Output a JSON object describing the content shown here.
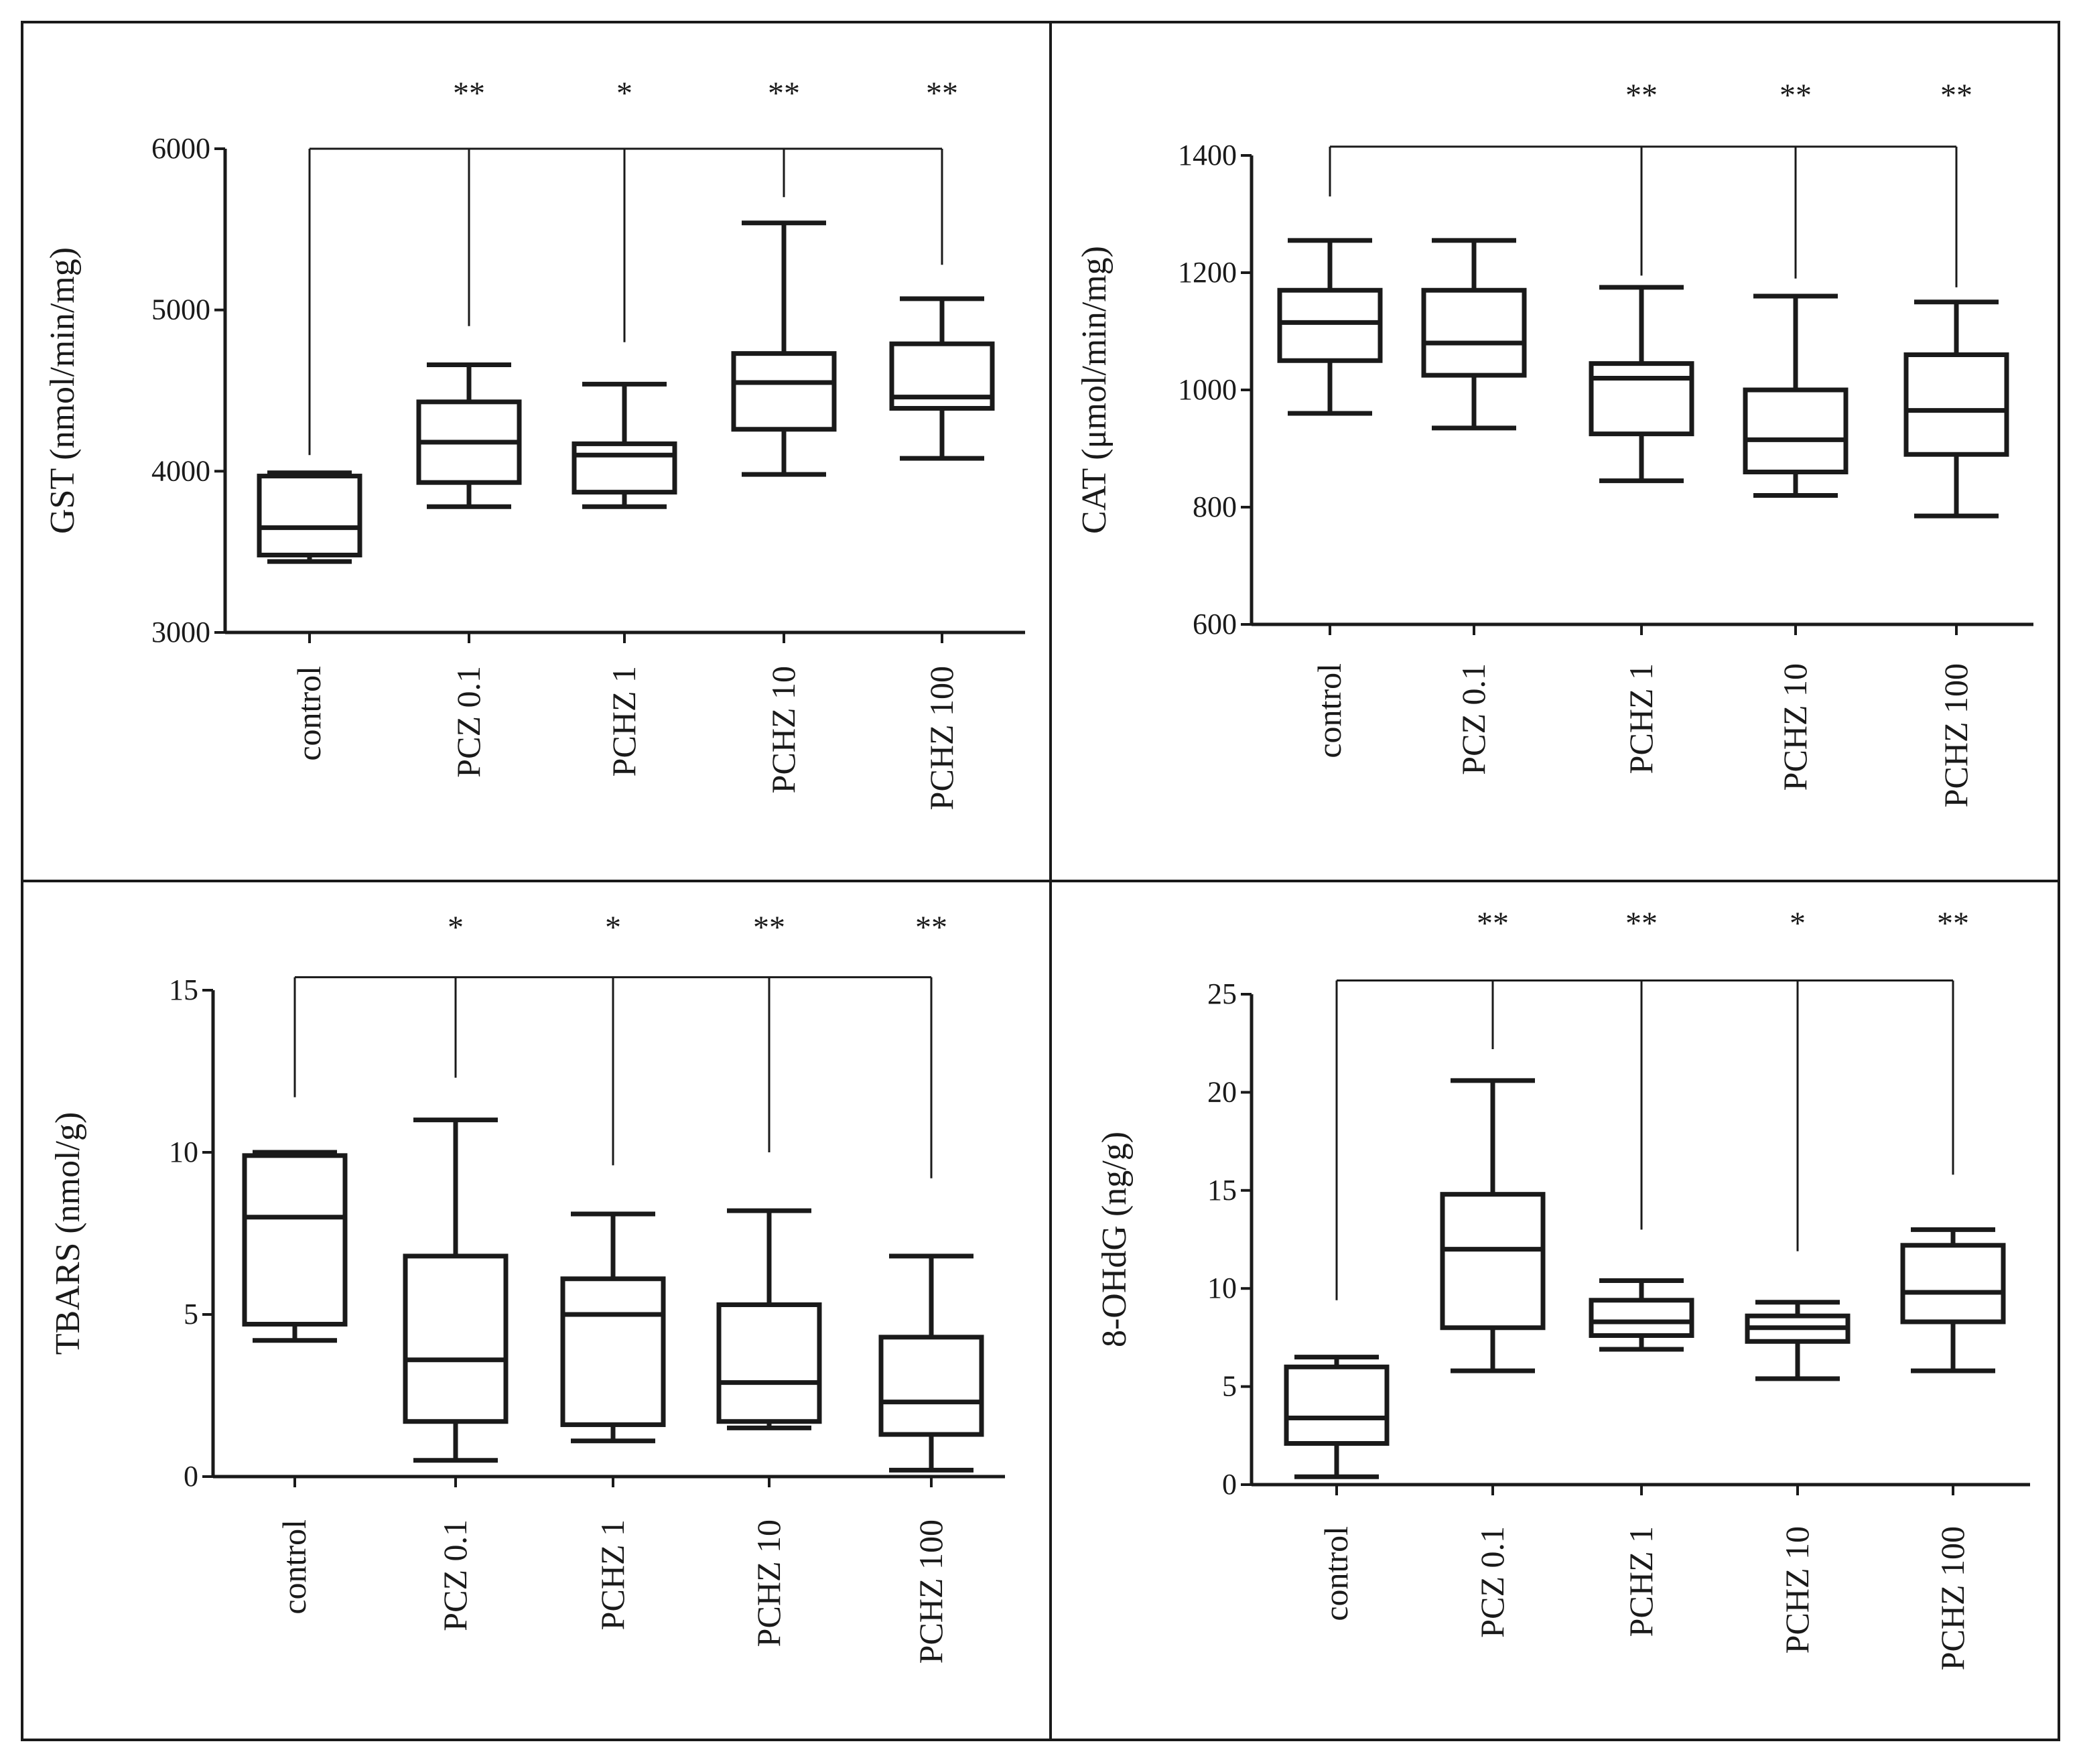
{
  "chart_data": [
    {
      "type": "boxplot",
      "ylabel": "GST (nmol/min/mg)",
      "ylim": [
        3000,
        6000
      ],
      "yticks": [
        3000,
        4000,
        5000,
        6000
      ],
      "categories": [
        "control",
        "PCZ 0.1",
        "PCHZ 1",
        "PCHZ 10",
        "PCHZ 100"
      ],
      "boxes": [
        {
          "min": 3440,
          "q1": 3480,
          "median": 3650,
          "q3": 3970,
          "max": 3990
        },
        {
          "min": 3780,
          "q1": 3930,
          "median": 4180,
          "q3": 4430,
          "max": 4660
        },
        {
          "min": 3780,
          "q1": 3870,
          "median": 4100,
          "q3": 4170,
          "max": 4540
        },
        {
          "min": 3980,
          "q1": 4260,
          "median": 4550,
          "q3": 4730,
          "max": 5540
        },
        {
          "min": 4080,
          "q1": 4390,
          "median": 4460,
          "q3": 4790,
          "max": 5070
        }
      ],
      "significance": {
        "reference": "control",
        "bracket_y": 6000,
        "marks": [
          "",
          "**",
          "*",
          "**",
          "**"
        ],
        "drop_to": [
          4100,
          4900,
          4800,
          5700,
          5280
        ]
      }
    },
    {
      "type": "boxplot",
      "ylabel": "CAT (μmol/min/mg)",
      "ylim": [
        600,
        1400
      ],
      "yticks": [
        600,
        800,
        1000,
        1200,
        1400
      ],
      "categories": [
        "control",
        "PCZ 0.1",
        "PCHZ 1",
        "PCHZ 10",
        "PCHZ 100"
      ],
      "boxes": [
        {
          "min": 960,
          "q1": 1050,
          "median": 1115,
          "q3": 1170,
          "max": 1255
        },
        {
          "min": 935,
          "q1": 1025,
          "median": 1080,
          "q3": 1170,
          "max": 1255
        },
        {
          "min": 845,
          "q1": 925,
          "median": 1020,
          "q3": 1045,
          "max": 1175
        },
        {
          "min": 820,
          "q1": 860,
          "median": 915,
          "q3": 1000,
          "max": 1160
        },
        {
          "min": 785,
          "q1": 890,
          "median": 965,
          "q3": 1060,
          "max": 1150
        }
      ],
      "significance": {
        "reference": "control",
        "bracket_y": 1415,
        "marks": [
          "",
          "",
          "**",
          "**",
          "**"
        ],
        "drop_to": [
          1330,
          null,
          1195,
          1190,
          1175
        ]
      }
    },
    {
      "type": "boxplot",
      "ylabel": "TBARS (nmol/g)",
      "ylim": [
        0,
        15
      ],
      "yticks": [
        0,
        5,
        10,
        15
      ],
      "categories": [
        "control",
        "PCZ 0.1",
        "PCHZ 1",
        "PCHZ 10",
        "PCHZ 100"
      ],
      "boxes": [
        {
          "min": 4.2,
          "q1": 4.7,
          "median": 8.0,
          "q3": 9.9,
          "max": 10.0
        },
        {
          "min": 0.5,
          "q1": 1.7,
          "median": 3.6,
          "q3": 6.8,
          "max": 11.0
        },
        {
          "min": 1.1,
          "q1": 1.6,
          "median": 5.0,
          "q3": 6.1,
          "max": 8.1
        },
        {
          "min": 1.5,
          "q1": 1.7,
          "median": 2.9,
          "q3": 5.3,
          "max": 8.2
        },
        {
          "min": 0.2,
          "q1": 1.3,
          "median": 2.3,
          "q3": 4.3,
          "max": 6.8
        }
      ],
      "significance": {
        "reference": "control",
        "bracket_y": 15.4,
        "marks": [
          "",
          "*",
          "*",
          "**",
          "**"
        ],
        "drop_to": [
          11.7,
          12.3,
          9.6,
          10.0,
          9.2
        ]
      }
    },
    {
      "type": "boxplot",
      "ylabel": "8-OHdG (ng/g)",
      "ylim": [
        0,
        25
      ],
      "yticks": [
        0,
        5,
        10,
        15,
        20,
        25
      ],
      "categories": [
        "control",
        "PCZ 0.1",
        "PCHZ 1",
        "PCHZ 10",
        "PCHZ 100"
      ],
      "boxes": [
        {
          "min": 0.4,
          "q1": 2.1,
          "median": 3.4,
          "q3": 6.0,
          "max": 6.5
        },
        {
          "min": 5.8,
          "q1": 8.0,
          "median": 12.0,
          "q3": 14.8,
          "max": 20.6
        },
        {
          "min": 6.9,
          "q1": 7.6,
          "median": 8.3,
          "q3": 9.4,
          "max": 10.4
        },
        {
          "min": 5.4,
          "q1": 7.3,
          "median": 8.0,
          "q3": 8.6,
          "max": 9.3
        },
        {
          "min": 5.8,
          "q1": 8.3,
          "median": 9.8,
          "q3": 12.2,
          "max": 13.0
        }
      ],
      "significance": {
        "reference": "control",
        "bracket_y": 25.7,
        "marks": [
          "",
          "**",
          "**",
          "*",
          "**"
        ],
        "drop_to": [
          9.4,
          22.2,
          13.0,
          11.9,
          15.8
        ]
      }
    }
  ]
}
